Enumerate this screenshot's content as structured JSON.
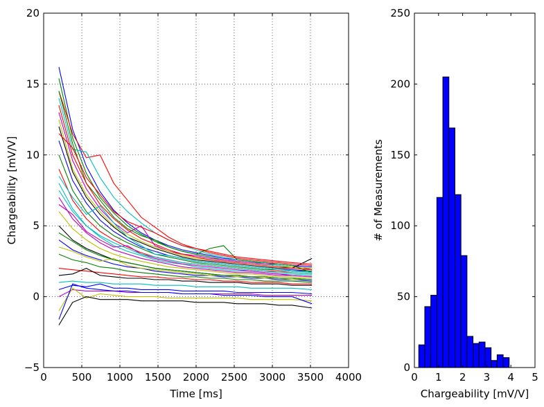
{
  "chart_data": [
    {
      "type": "line",
      "title": "",
      "xlabel": "Time [ms]",
      "ylabel": "Chargeability [mV/V]",
      "xlim": [
        0,
        4000
      ],
      "ylim": [
        -5,
        20
      ],
      "x_ticks": [
        0,
        500,
        1000,
        1500,
        2000,
        2500,
        3000,
        3500,
        4000
      ],
      "y_ticks": [
        -5,
        0,
        5,
        10,
        15,
        20
      ],
      "x_tick_labels": [
        "0",
        "500",
        "1000",
        "1500",
        "2000",
        "2500",
        "3000",
        "3500",
        "4000"
      ],
      "y_tick_labels": [
        "−5",
        "0",
        "5",
        "10",
        "15",
        "20"
      ],
      "grid": true,
      "legend": "none",
      "x": [
        200,
        380,
        560,
        740,
        920,
        1100,
        1280,
        1460,
        1640,
        1820,
        2000,
        2180,
        2360,
        2540,
        2720,
        2900,
        3080,
        3260,
        3520
      ],
      "series_colors": [
        "#0000ff",
        "#008000",
        "#ff0000",
        "#00bfbf",
        "#bf00bf",
        "#bfbf00",
        "#000000"
      ],
      "series": [
        {
          "values": [
            16.2,
            11.8,
            9.2,
            7.4,
            6.1,
            5.2,
            4.5,
            4.0,
            3.6,
            3.3,
            3.1,
            2.9,
            2.7,
            2.6,
            2.5,
            2.4,
            2.3,
            2.2,
            2.1
          ]
        },
        {
          "values": [
            15.4,
            11.2,
            8.7,
            7.0,
            5.9,
            5.0,
            4.4,
            3.9,
            3.5,
            3.2,
            3.0,
            2.8,
            2.6,
            2.5,
            2.4,
            2.3,
            2.2,
            2.1,
            2.0
          ]
        },
        {
          "values": [
            14.5,
            11.5,
            9.8,
            10.0,
            8.0,
            6.8,
            5.6,
            4.9,
            4.2,
            3.7,
            3.4,
            3.1,
            2.9,
            2.7,
            2.6,
            2.5,
            2.4,
            2.3,
            2.2
          ]
        },
        {
          "values": [
            14.0,
            10.4,
            10.2,
            8.4,
            7.0,
            6.0,
            5.2,
            4.5,
            4.0,
            3.6,
            3.3,
            3.0,
            2.8,
            2.6,
            2.5,
            2.3,
            2.2,
            2.1,
            2.0
          ]
        },
        {
          "values": [
            13.0,
            9.6,
            7.6,
            6.2,
            5.2,
            4.5,
            5.0,
            3.6,
            3.2,
            3.0,
            2.9,
            2.7,
            2.6,
            2.5,
            2.4,
            2.3,
            2.3,
            2.2,
            1.9
          ]
        },
        {
          "values": [
            12.5,
            9.0,
            7.2,
            6.0,
            5.0,
            4.4,
            3.9,
            3.5,
            3.2,
            2.9,
            2.7,
            2.6,
            2.5,
            2.4,
            2.3,
            2.2,
            2.1,
            2.1,
            2.0
          ]
        },
        {
          "values": [
            12.0,
            8.8,
            7.0,
            5.8,
            4.9,
            4.2,
            3.8,
            3.4,
            3.1,
            2.8,
            2.6,
            2.5,
            2.4,
            2.3,
            2.2,
            2.1,
            2.0,
            2.0,
            2.7
          ]
        },
        {
          "values": [
            11.0,
            8.2,
            6.6,
            5.4,
            4.6,
            4.0,
            3.5,
            3.2,
            2.9,
            2.7,
            2.5,
            2.4,
            2.3,
            2.2,
            2.1,
            2.0,
            1.9,
            1.9,
            1.8
          ]
        },
        {
          "values": [
            10.0,
            7.5,
            6.0,
            5.0,
            4.3,
            3.8,
            3.4,
            3.0,
            2.8,
            2.6,
            2.4,
            2.3,
            2.2,
            2.1,
            2.0,
            1.9,
            1.9,
            1.8,
            1.8
          ]
        },
        {
          "values": [
            9.0,
            6.8,
            5.5,
            4.6,
            4.0,
            3.5,
            3.1,
            2.8,
            2.6,
            2.4,
            2.3,
            2.2,
            2.1,
            2.0,
            1.9,
            1.8,
            1.8,
            1.7,
            1.6
          ]
        },
        {
          "values": [
            8.0,
            6.2,
            5.0,
            4.2,
            3.6,
            3.2,
            2.9,
            2.6,
            2.4,
            2.3,
            2.1,
            2.0,
            1.9,
            1.8,
            1.8,
            1.7,
            1.6,
            1.6,
            1.5
          ]
        },
        {
          "values": [
            7.0,
            5.5,
            4.5,
            3.8,
            3.3,
            3.0,
            2.7,
            2.5,
            2.3,
            2.1,
            2.0,
            1.9,
            1.8,
            1.7,
            1.7,
            1.6,
            1.5,
            1.5,
            1.4
          ]
        },
        {
          "values": [
            6.0,
            4.8,
            4.0,
            3.4,
            3.0,
            2.7,
            2.5,
            2.3,
            2.1,
            2.0,
            1.9,
            1.8,
            1.7,
            1.6,
            1.6,
            1.5,
            1.4,
            1.4,
            1.3
          ]
        },
        {
          "values": [
            5.0,
            4.0,
            3.4,
            3.0,
            2.6,
            2.4,
            2.2,
            2.0,
            1.9,
            1.8,
            1.7,
            1.6,
            1.5,
            1.5,
            1.4,
            1.4,
            1.3,
            1.3,
            1.2
          ]
        },
        {
          "values": [
            4.0,
            3.3,
            2.9,
            2.6,
            2.3,
            2.1,
            2.0,
            1.8,
            1.7,
            1.6,
            1.5,
            1.5,
            1.4,
            1.4,
            1.3,
            1.3,
            1.2,
            1.2,
            1.1
          ]
        },
        {
          "values": [
            3.0,
            2.6,
            2.4,
            2.1,
            2.0,
            1.8,
            1.7,
            1.6,
            1.5,
            1.4,
            1.4,
            1.3,
            1.3,
            1.2,
            1.2,
            1.1,
            1.1,
            1.1,
            1.0
          ]
        },
        {
          "values": [
            2.0,
            1.9,
            1.8,
            1.7,
            1.6,
            1.5,
            1.4,
            1.4,
            1.3,
            1.3,
            1.2,
            1.2,
            1.1,
            1.1,
            1.0,
            1.0,
            1.0,
            0.9,
            0.9
          ]
        },
        {
          "values": [
            1.0,
            1.1,
            1.0,
            1.0,
            0.9,
            0.9,
            0.9,
            0.8,
            0.8,
            0.8,
            0.7,
            0.7,
            0.7,
            0.7,
            0.6,
            0.6,
            0.6,
            0.6,
            0.5
          ]
        },
        {
          "values": [
            0.0,
            0.5,
            0.4,
            0.4,
            0.4,
            0.3,
            0.3,
            0.3,
            0.3,
            0.2,
            0.2,
            0.2,
            0.2,
            0.2,
            0.2,
            0.1,
            0.1,
            0.1,
            0.1
          ]
        },
        {
          "values": [
            -1.0,
            0.6,
            -0.1,
            0.2,
            0.1,
            0.0,
            0.0,
            0.0,
            -0.1,
            -0.1,
            -0.1,
            -0.1,
            -0.1,
            -0.1,
            -0.2,
            -0.2,
            -0.2,
            -0.2,
            -0.3
          ]
        },
        {
          "values": [
            -2.0,
            -0.4,
            0.0,
            -0.2,
            -0.2,
            -0.2,
            -0.3,
            -0.3,
            -0.3,
            -0.3,
            -0.4,
            -0.4,
            -0.4,
            -0.5,
            -0.5,
            -0.5,
            -0.6,
            -0.6,
            -0.8
          ]
        },
        {
          "values": [
            -1.6,
            0.9,
            0.6,
            0.5,
            0.4,
            0.4,
            0.3,
            0.3,
            0.3,
            0.2,
            0.2,
            0.2,
            0.1,
            0.1,
            0.1,
            0.0,
            0.0,
            0.0,
            -0.5
          ]
        },
        {
          "values": [
            14.5,
            10.8,
            8.0,
            6.8,
            5.6,
            4.8,
            4.3,
            4.0,
            3.5,
            3.2,
            3.0,
            3.4,
            3.6,
            2.6,
            2.5,
            2.4,
            2.3,
            2.2,
            1.7
          ]
        },
        {
          "values": [
            11.5,
            10.5,
            8.4,
            7.2,
            6.0,
            5.3,
            4.9,
            4.5,
            4.0,
            3.6,
            3.4,
            3.2,
            3.0,
            2.8,
            2.7,
            2.6,
            2.5,
            2.4,
            2.3
          ]
        },
        {
          "values": [
            8.5,
            7.0,
            5.8,
            6.4,
            5.2,
            4.2,
            3.6,
            3.0,
            2.9,
            2.7,
            2.5,
            2.4,
            2.3,
            2.2,
            2.1,
            2.0,
            1.9,
            1.8,
            1.7
          ]
        },
        {
          "values": [
            6.5,
            5.8,
            4.6,
            4.0,
            3.5,
            3.6,
            3.0,
            2.7,
            2.5,
            2.3,
            2.2,
            2.1,
            2.0,
            1.9,
            1.8,
            1.7,
            1.6,
            1.5,
            1.4
          ]
        },
        {
          "values": [
            3.5,
            3.2,
            2.8,
            2.5,
            2.7,
            2.2,
            2.0,
            1.9,
            1.8,
            1.7,
            1.6,
            1.5,
            1.5,
            1.4,
            1.4,
            1.3,
            1.3,
            1.2,
            1.2
          ]
        },
        {
          "values": [
            1.5,
            1.6,
            2.0,
            1.5,
            1.4,
            1.3,
            1.3,
            1.2,
            1.2,
            1.1,
            1.1,
            1.0,
            1.0,
            1.0,
            0.9,
            0.9,
            0.9,
            0.8,
            0.8
          ]
        },
        {
          "values": [
            0.5,
            0.8,
            0.7,
            0.9,
            0.6,
            0.6,
            0.5,
            0.5,
            0.5,
            0.4,
            0.4,
            0.4,
            0.4,
            0.3,
            0.3,
            0.3,
            0.3,
            0.3,
            0.2
          ]
        },
        {
          "values": [
            4.5,
            3.9,
            3.3,
            2.9,
            2.6,
            2.4,
            2.2,
            2.0,
            1.9,
            1.8,
            1.7,
            1.6,
            1.5,
            1.5,
            1.4,
            1.4,
            1.3,
            1.3,
            1.2
          ]
        },
        {
          "values": [
            13.5,
            10.0,
            8.0,
            6.5,
            5.5,
            4.7,
            4.1,
            3.7,
            3.3,
            3.0,
            2.8,
            2.6,
            2.5,
            2.4,
            2.3,
            2.2,
            2.1,
            2.0,
            1.9
          ]
        },
        {
          "values": [
            7.5,
            6.0,
            5.0,
            4.3,
            3.8,
            3.4,
            3.0,
            2.8,
            2.6,
            2.4,
            2.3,
            2.2,
            2.1,
            2.0,
            1.9,
            1.8,
            1.7,
            1.7,
            1.6
          ]
        }
      ]
    },
    {
      "type": "bar",
      "title": "",
      "xlabel": "Chargeability [mV/V]",
      "ylabel": "# of Measurements",
      "xlim": [
        0,
        5
      ],
      "ylim": [
        0,
        250
      ],
      "x_ticks": [
        0,
        1,
        2,
        3,
        4,
        5
      ],
      "y_ticks": [
        0,
        50,
        100,
        150,
        200,
        250
      ],
      "x_tick_labels": [
        "0",
        "1",
        "2",
        "3",
        "4",
        "5"
      ],
      "y_tick_labels": [
        "0",
        "50",
        "100",
        "150",
        "200",
        "250"
      ],
      "grid": false,
      "legend": "none",
      "bar_color": "#0000ff",
      "bin_edges": [
        0.18,
        0.43,
        0.68,
        0.93,
        1.18,
        1.43,
        1.68,
        1.93,
        2.18,
        2.43,
        2.68,
        2.93,
        3.18,
        3.43,
        3.68,
        3.93,
        4.18,
        4.43,
        4.68
      ],
      "counts": [
        16,
        43,
        51,
        120,
        205,
        169,
        122,
        79,
        22,
        17,
        18,
        14,
        5,
        9,
        7,
        0,
        0,
        0
      ]
    }
  ]
}
